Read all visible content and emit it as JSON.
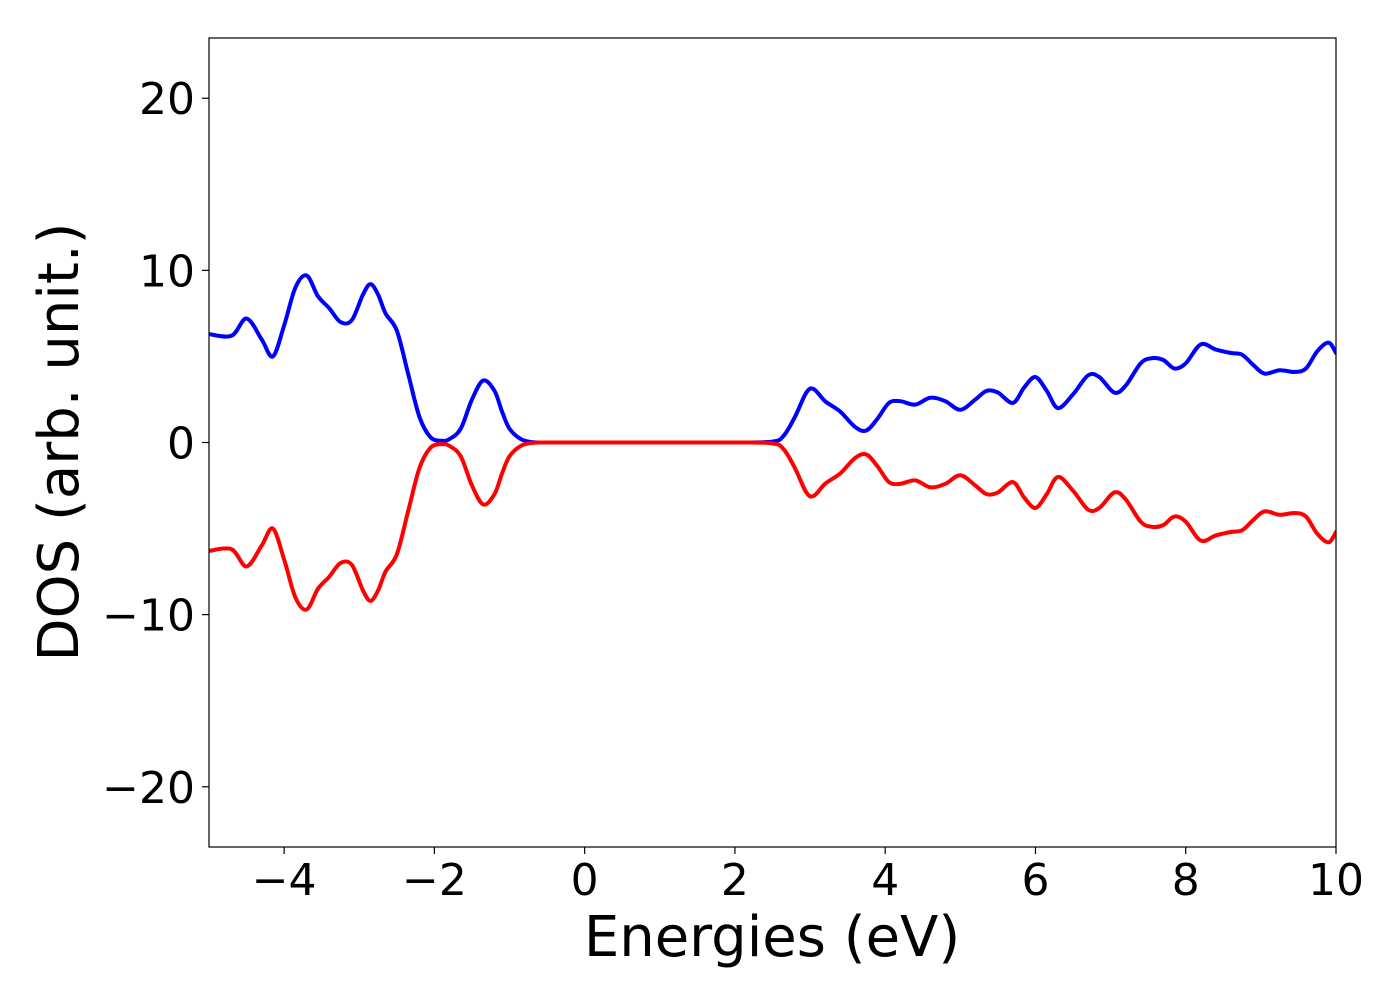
{
  "chart_data": {
    "type": "line",
    "title": "",
    "xlabel": "Energies (eV)",
    "ylabel": "DOS (arb. unit.)",
    "xlim": [
      -5,
      10
    ],
    "ylim": [
      -23.5,
      23.5
    ],
    "grid": false,
    "legend": "none",
    "xticks": [
      -4,
      -2,
      0,
      2,
      4,
      6,
      8,
      10
    ],
    "xtick_labels": [
      "−4",
      "−2",
      "0",
      "2",
      "4",
      "6",
      "8",
      "10"
    ],
    "yticks": [
      -20,
      -10,
      0,
      10,
      20
    ],
    "ytick_labels": [
      "−20",
      "−10",
      "0",
      "10",
      "20"
    ],
    "series": [
      {
        "color": "#0000ff",
        "x": [
          -5.0,
          -4.7,
          -4.5,
          -4.3,
          -4.15,
          -4.0,
          -3.85,
          -3.7,
          -3.55,
          -3.4,
          -3.25,
          -3.1,
          -2.95,
          -2.85,
          -2.75,
          -2.65,
          -2.5,
          -2.35,
          -2.2,
          -2.05,
          -1.9,
          -1.8,
          -1.65,
          -1.5,
          -1.35,
          -1.2,
          -1.1,
          -1.0,
          -0.85,
          -0.7,
          -0.55,
          -0.4,
          0.0,
          1.0,
          2.0,
          2.5,
          2.65,
          2.8,
          2.95,
          3.05,
          3.2,
          3.4,
          3.6,
          3.75,
          3.9,
          4.05,
          4.2,
          4.4,
          4.6,
          4.8,
          5.0,
          5.2,
          5.35,
          5.5,
          5.7,
          5.85,
          6.0,
          6.15,
          6.3,
          6.5,
          6.7,
          6.85,
          7.05,
          7.2,
          7.4,
          7.55,
          7.7,
          7.85,
          8.0,
          8.2,
          8.4,
          8.6,
          8.75,
          8.9,
          9.05,
          9.25,
          9.45,
          9.6,
          9.75,
          9.9,
          10.0
        ],
        "y": [
          6.3,
          6.2,
          7.2,
          6.0,
          5.0,
          6.8,
          9.0,
          9.7,
          8.5,
          7.8,
          7.0,
          7.1,
          8.6,
          9.2,
          8.6,
          7.5,
          6.5,
          4.0,
          1.5,
          0.3,
          0.1,
          0.2,
          0.8,
          2.5,
          3.6,
          3.0,
          1.8,
          0.8,
          0.2,
          0.02,
          0.0,
          0.0,
          0.0,
          0.0,
          0.0,
          0.05,
          0.4,
          1.5,
          2.9,
          3.1,
          2.4,
          1.8,
          0.9,
          0.7,
          1.4,
          2.3,
          2.4,
          2.2,
          2.6,
          2.4,
          1.9,
          2.5,
          3.0,
          2.9,
          2.3,
          3.2,
          3.8,
          3.0,
          2.0,
          2.8,
          3.9,
          3.8,
          2.9,
          3.3,
          4.6,
          4.9,
          4.8,
          4.3,
          4.6,
          5.7,
          5.4,
          5.2,
          5.1,
          4.5,
          4.0,
          4.2,
          4.1,
          4.3,
          5.3,
          5.8,
          5.2
        ]
      },
      {
        "color": "#ff0000",
        "x": [
          -5.0,
          -4.7,
          -4.5,
          -4.3,
          -4.15,
          -4.0,
          -3.85,
          -3.7,
          -3.55,
          -3.4,
          -3.25,
          -3.1,
          -2.95,
          -2.85,
          -2.75,
          -2.65,
          -2.5,
          -2.35,
          -2.2,
          -2.05,
          -1.9,
          -1.8,
          -1.65,
          -1.5,
          -1.35,
          -1.2,
          -1.1,
          -1.0,
          -0.85,
          -0.7,
          -0.55,
          -0.4,
          0.0,
          1.0,
          2.0,
          2.5,
          2.65,
          2.8,
          2.95,
          3.05,
          3.2,
          3.4,
          3.6,
          3.75,
          3.9,
          4.05,
          4.2,
          4.4,
          4.6,
          4.8,
          5.0,
          5.2,
          5.35,
          5.5,
          5.7,
          5.85,
          6.0,
          6.15,
          6.3,
          6.5,
          6.7,
          6.85,
          7.05,
          7.2,
          7.4,
          7.55,
          7.7,
          7.85,
          8.0,
          8.2,
          8.4,
          8.6,
          8.75,
          8.9,
          9.05,
          9.25,
          9.45,
          9.6,
          9.75,
          9.9,
          10.0
        ],
        "y": [
          -6.3,
          -6.2,
          -7.2,
          -6.0,
          -5.0,
          -6.8,
          -9.0,
          -9.7,
          -8.5,
          -7.8,
          -7.0,
          -7.1,
          -8.6,
          -9.2,
          -8.6,
          -7.5,
          -6.5,
          -4.0,
          -1.5,
          -0.3,
          -0.1,
          -0.2,
          -0.8,
          -2.5,
          -3.6,
          -3.0,
          -1.8,
          -0.8,
          -0.2,
          -0.02,
          0.0,
          0.0,
          0.0,
          0.0,
          0.0,
          -0.05,
          -0.4,
          -1.5,
          -2.9,
          -3.1,
          -2.4,
          -1.8,
          -0.9,
          -0.7,
          -1.4,
          -2.3,
          -2.4,
          -2.2,
          -2.6,
          -2.4,
          -1.9,
          -2.5,
          -3.0,
          -2.9,
          -2.3,
          -3.2,
          -3.8,
          -3.0,
          -2.0,
          -2.8,
          -3.9,
          -3.8,
          -2.9,
          -3.3,
          -4.6,
          -4.9,
          -4.8,
          -4.3,
          -4.6,
          -5.7,
          -5.4,
          -5.2,
          -5.1,
          -4.5,
          -4.0,
          -4.2,
          -4.1,
          -4.3,
          -5.3,
          -5.8,
          -5.2
        ]
      }
    ]
  }
}
